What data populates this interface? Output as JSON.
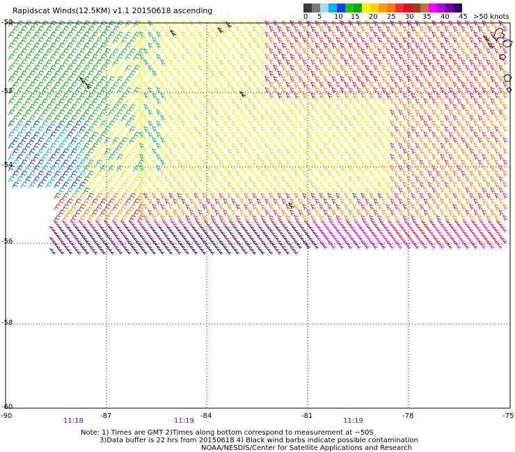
{
  "title": "Rapidscat Winds(12.5KM) v1.1 20150618 ascending",
  "colorbar": {
    "labels": [
      "0",
      "5",
      "10",
      "15",
      "20",
      "25",
      "30",
      "35",
      "40",
      "45",
      ">50 knots"
    ],
    "colors": [
      "#3a3a3a",
      "#7a7a7a",
      "#a9d8f8",
      "#00b8f0",
      "#1a3df0",
      "#20c020",
      "#12a812",
      "#f5f500",
      "#ffd200",
      "#ff9c00",
      "#ff7a00",
      "#ff2a2a",
      "#e01020",
      "#a83a1a",
      "#c07048",
      "#ff00ff",
      "#b000d8",
      "#7000a0",
      "#3a0070"
    ]
  },
  "lat_labels": [
    "-50",
    "-52",
    "-54",
    "-56",
    "-58",
    "-60"
  ],
  "lon_labels": [
    "-90",
    "-87",
    "-84",
    "-81",
    "-78",
    "-75"
  ],
  "time_labels": [
    "11:18",
    "11:19",
    "11:19"
  ],
  "notes": [
    "Note: 1) Times are GMT 2)Times along bottom correspond to measurement at ~50S",
    "3)Data buffer is 22 hrs from 20150618 4) Black wind barbs indicate possible contamination",
    "NOAA/NESDIS/Center for Satellite Applications and Research"
  ],
  "map": {
    "lat_range": [
      -60,
      -50
    ],
    "lon_range": [
      -90,
      -75
    ],
    "grid": true,
    "land_color": "#000000"
  }
}
